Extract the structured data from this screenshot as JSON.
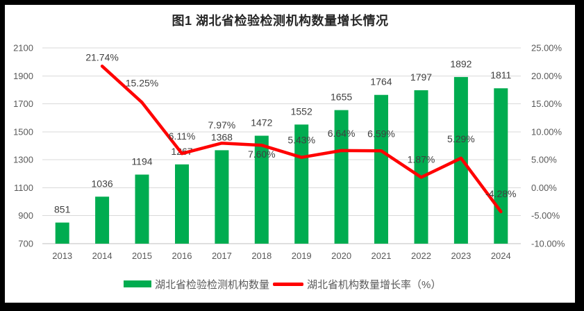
{
  "frame": {
    "border_color": "#000000",
    "canvas_color": "#FFFFFF"
  },
  "chart_data": {
    "type": "bar",
    "combo": "bar+line",
    "title": "图1 湖北省检验检测机构数量增长情况",
    "categories": [
      "2013",
      "2014",
      "2015",
      "2016",
      "2017",
      "2018",
      "2019",
      "2020",
      "2021",
      "2022",
      "2023",
      "2024"
    ],
    "series": [
      {
        "name": "湖北省检验检测机构数量",
        "chart_type": "bar",
        "axis": "left",
        "color": "#00AC50",
        "values": [
          851,
          1036,
          1194,
          1267,
          1368,
          1472,
          1552,
          1655,
          1764,
          1797,
          1892,
          1811
        ],
        "labels": [
          "851",
          "1036",
          "1194",
          "1267",
          "1368",
          "1472",
          "1552",
          "1655",
          "1764",
          "1797",
          "1892",
          "1811"
        ]
      },
      {
        "name": "湖北省机构数量增长率（%）",
        "chart_type": "line",
        "axis": "right",
        "color": "#FF0000",
        "values": [
          null,
          21.74,
          15.25,
          6.11,
          7.97,
          7.6,
          5.43,
          6.64,
          6.59,
          1.87,
          5.29,
          -4.28
        ],
        "labels": [
          null,
          "21.74%",
          "15.25%",
          "6.11%",
          "7.97%",
          "7.60%",
          "5.43%",
          "6.64%",
          "6.59%",
          "1.87%",
          "5.29%",
          "-4.28%"
        ],
        "label_dy": [
          null,
          -13,
          -28,
          -25,
          -26,
          13,
          -25,
          -25,
          -25,
          -26,
          -28,
          -26
        ]
      }
    ],
    "left_axis": {
      "min": 700,
      "max": 2100,
      "step": 200,
      "tick_labels": [
        "700",
        "900",
        "1100",
        "1300",
        "1500",
        "1700",
        "1900",
        "2100"
      ]
    },
    "right_axis": {
      "min": -10,
      "max": 25,
      "step": 5,
      "tick_labels": [
        "-10.00%",
        "-5.00%",
        "0.00%",
        "5.00%",
        "10.00%",
        "15.00%",
        "20.00%",
        "25.00%"
      ]
    },
    "grid": true,
    "legend_position": "bottom",
    "colors": {
      "grid": "#D9D9D9",
      "axis_line": "#BFBFBF",
      "axis_text": "#595959",
      "data_label": "#404040",
      "title_text": "#262626"
    }
  }
}
